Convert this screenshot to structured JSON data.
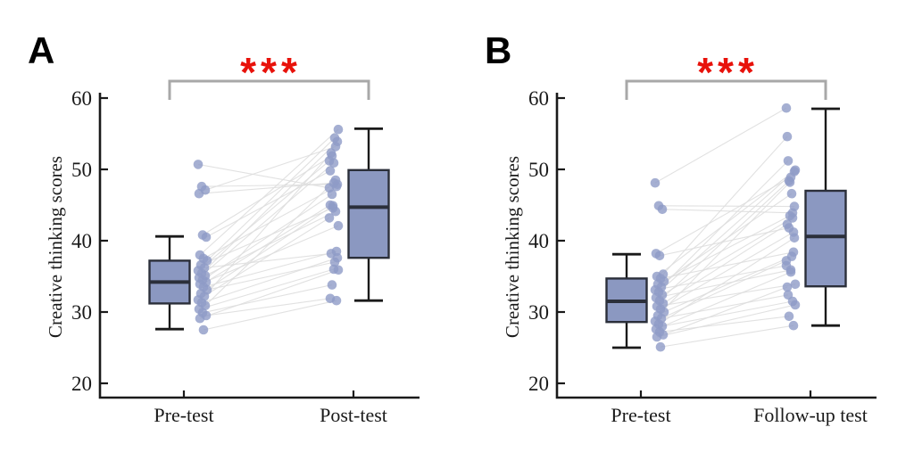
{
  "figure": {
    "background": "#ffffff",
    "colors": {
      "box_fill": "#8b98c1",
      "box_stroke": "#2b2f3a",
      "whisker": "#1a1a1a",
      "axis": "#1a1a1a",
      "point": "#8e9bc7",
      "pair_line": "#dedede",
      "bracket": "#a8a8a8",
      "significance": "#e8120b",
      "text": "#1a1a1a"
    }
  },
  "chart_data": [
    {
      "type": "box",
      "panel_label": "A",
      "ylabel": "Creative thinking scores",
      "ylim": [
        18,
        62
      ],
      "yticks": [
        20,
        30,
        40,
        50,
        60
      ],
      "grid": false,
      "categories": [
        "Pre-test",
        "Post-test"
      ],
      "significance": {
        "label": "***",
        "between": [
          0,
          1
        ]
      },
      "boxes": [
        {
          "category": "Pre-test",
          "whisker_low": 27.6,
          "q1": 31.2,
          "median": 34.2,
          "q3": 37.2,
          "whisker_high": 40.6
        },
        {
          "category": "Post-test",
          "whisker_low": 31.6,
          "q1": 37.6,
          "median": 44.7,
          "q3": 49.9,
          "whisker_high": 55.7
        }
      ],
      "paired_points": [
        [
          50.7,
          47.4
        ],
        [
          47.6,
          47.9
        ],
        [
          47.1,
          53.2
        ],
        [
          46.6,
          48.1
        ],
        [
          40.8,
          51.9
        ],
        [
          40.5,
          49.8
        ],
        [
          38.0,
          55.6
        ],
        [
          37.5,
          47.6
        ],
        [
          37.2,
          54.4
        ],
        [
          36.6,
          44.6
        ],
        [
          36.2,
          38.2
        ],
        [
          35.8,
          51.2
        ],
        [
          35.4,
          53.9
        ],
        [
          35.1,
          44.1
        ],
        [
          34.8,
          50.9
        ],
        [
          34.5,
          46.5
        ],
        [
          34.2,
          45.0
        ],
        [
          33.9,
          42.1
        ],
        [
          33.5,
          38.5
        ],
        [
          33.1,
          37.0
        ],
        [
          32.6,
          44.9
        ],
        [
          32.2,
          52.3
        ],
        [
          31.7,
          43.2
        ],
        [
          31.3,
          37.6
        ],
        [
          30.9,
          48.5
        ],
        [
          30.4,
          36.0
        ],
        [
          29.9,
          33.8
        ],
        [
          29.5,
          31.9
        ],
        [
          29.1,
          35.9
        ],
        [
          27.5,
          31.6
        ]
      ]
    },
    {
      "type": "box",
      "panel_label": "B",
      "ylabel": "Creative thinking scores",
      "ylim": [
        18,
        62
      ],
      "yticks": [
        20,
        30,
        40,
        50,
        60
      ],
      "grid": false,
      "categories": [
        "Pre-test",
        "Follow-up test"
      ],
      "significance": {
        "label": "***",
        "between": [
          0,
          1
        ]
      },
      "boxes": [
        {
          "category": "Pre-test",
          "whisker_low": 25.0,
          "q1": 28.6,
          "median": 31.5,
          "q3": 34.7,
          "whisker_high": 38.1
        },
        {
          "category": "Follow-up test",
          "whisker_low": 28.1,
          "q1": 33.6,
          "median": 40.6,
          "q3": 47.0,
          "whisker_high": 58.5
        }
      ],
      "paired_points": [
        [
          48.1,
          58.6
        ],
        [
          44.9,
          44.8
        ],
        [
          44.4,
          43.9
        ],
        [
          38.2,
          48.9
        ],
        [
          37.9,
          41.8
        ],
        [
          35.3,
          54.6
        ],
        [
          35.0,
          49.9
        ],
        [
          34.7,
          38.4
        ],
        [
          34.3,
          46.6
        ],
        [
          33.9,
          43.5
        ],
        [
          33.5,
          51.2
        ],
        [
          33.1,
          36.5
        ],
        [
          32.8,
          49.7
        ],
        [
          32.4,
          43.2
        ],
        [
          32.0,
          35.9
        ],
        [
          31.6,
          48.4
        ],
        [
          31.2,
          42.3
        ],
        [
          30.8,
          33.9
        ],
        [
          30.4,
          41.2
        ],
        [
          30.0,
          37.8
        ],
        [
          29.5,
          48.2
        ],
        [
          29.1,
          32.4
        ],
        [
          28.7,
          37.2
        ],
        [
          28.3,
          40.4
        ],
        [
          28.0,
          31.5
        ],
        [
          27.6,
          35.6
        ],
        [
          27.2,
          29.4
        ],
        [
          26.8,
          33.5
        ],
        [
          26.5,
          31.0
        ],
        [
          25.1,
          28.1
        ]
      ]
    }
  ]
}
